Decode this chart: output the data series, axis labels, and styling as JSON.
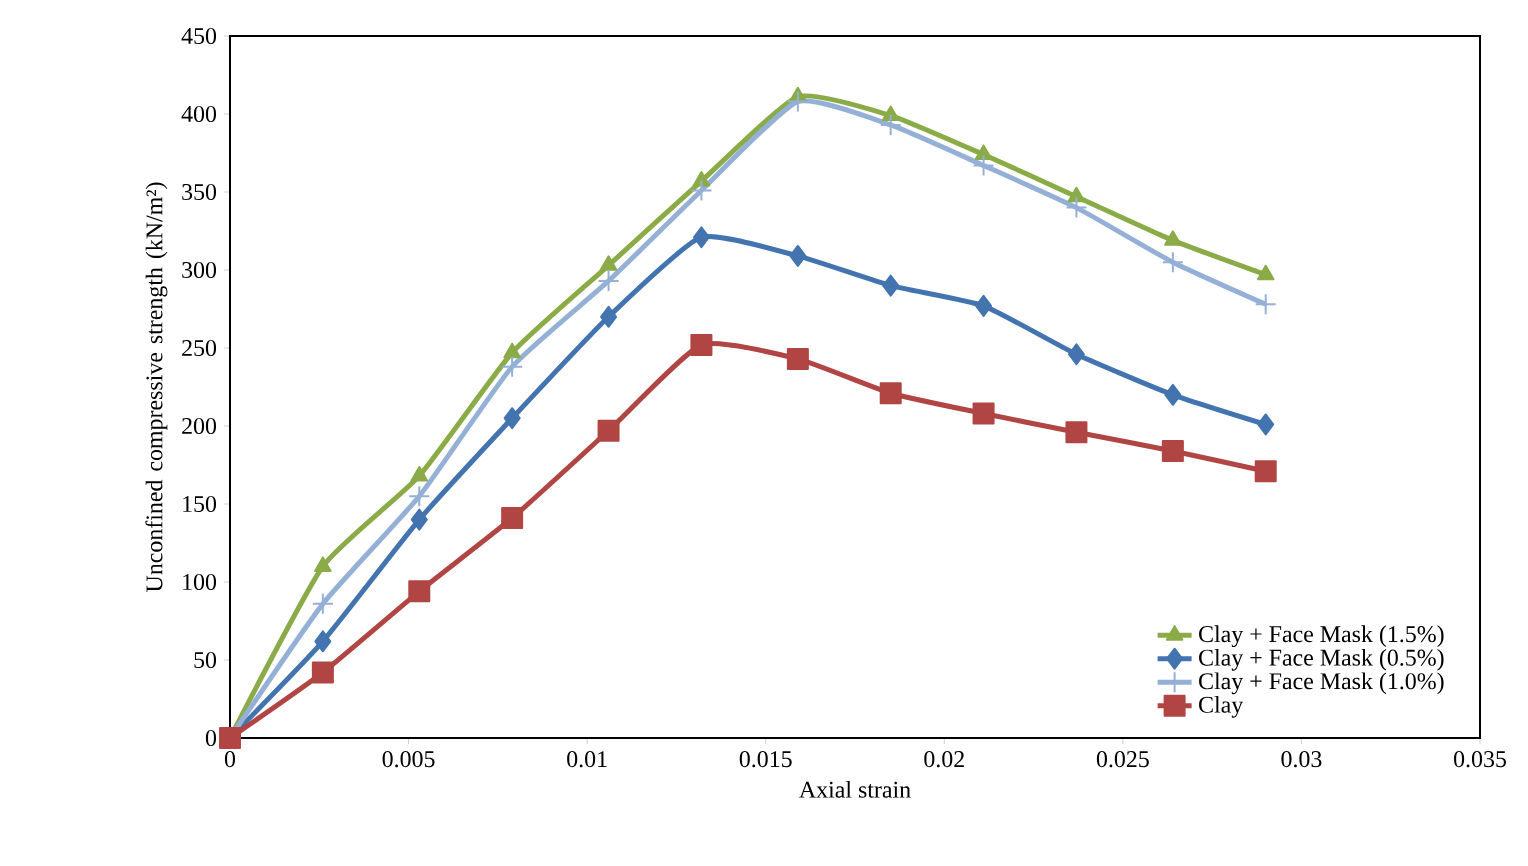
{
  "chart_data": {
    "type": "line",
    "xlabel": "Axial strain",
    "ylabel": "Unconfined compressive strength (kN/m²)",
    "x": [
      0,
      0.0026,
      0.0053,
      0.0079,
      0.0106,
      0.0132,
      0.0159,
      0.0185,
      0.0211,
      0.0237,
      0.0264,
      0.029
    ],
    "series": [
      {
        "name": "Clay + Face Mask (1.5%)",
        "color": "#8aab48",
        "marker": "triangle",
        "values": [
          0,
          110,
          168,
          247,
          303,
          357,
          411,
          399,
          374,
          347,
          319,
          297
        ]
      },
      {
        "name": "Clay + Face Mask (0.5%)",
        "color": "#4374b0",
        "marker": "diamond",
        "values": [
          0,
          62,
          140,
          205,
          270,
          321,
          309,
          290,
          277,
          246,
          220,
          201
        ]
      },
      {
        "name": "Clay + Face Mask (1.0%)",
        "color": "#95b0d6",
        "marker": "cross",
        "values": [
          0,
          86,
          155,
          238,
          293,
          351,
          408,
          393,
          367,
          340,
          305,
          278
        ]
      },
      {
        "name": "Clay",
        "color": "#b04543",
        "marker": "square",
        "values": [
          0,
          42,
          94,
          141,
          197,
          252,
          243,
          221,
          208,
          196,
          184,
          171
        ]
      }
    ],
    "xlim": [
      0,
      0.035
    ],
    "xticks": [
      0,
      0.005,
      0.01,
      0.015,
      0.02,
      0.025,
      0.03,
      0.035
    ],
    "ylim": [
      0,
      450
    ],
    "yticks": [
      0,
      50,
      100,
      150,
      200,
      250,
      300,
      350,
      400,
      450
    ],
    "grid": false,
    "legend": "bottom right",
    "line_style": "solid"
  }
}
